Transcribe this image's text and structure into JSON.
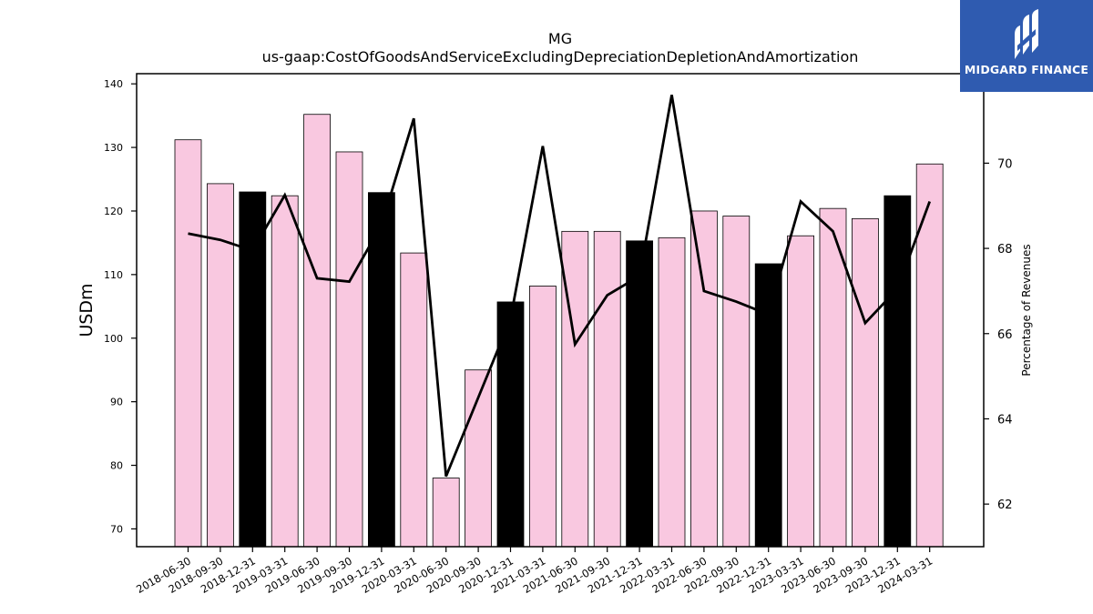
{
  "chart_data": {
    "type": "bar",
    "title": "MG",
    "subtitle": "us-gaap:CostOfGoodsAndServiceExcludingDepreciationDepletionAndAmortization",
    "ylabel": "USDm",
    "y2label": "Percentage of Revenues",
    "ylim": [
      67.2,
      141.6
    ],
    "y2lim": [
      61.0,
      72.1
    ],
    "yticks": [
      "70",
      "80",
      "90",
      "100",
      "110",
      "120",
      "130",
      "140"
    ],
    "y2ticks": [
      "62",
      "64",
      "66",
      "68",
      "70"
    ],
    "categories": [
      "2018-06-30",
      "2018-09-30",
      "2018-12-31",
      "2019-03-31",
      "2019-06-30",
      "2019-09-30",
      "2019-12-31",
      "2020-03-31",
      "2020-06-30",
      "2020-09-30",
      "2020-12-31",
      "2021-03-31",
      "2021-06-30",
      "2021-09-30",
      "2021-12-31",
      "2022-03-31",
      "2022-06-30",
      "2022-09-30",
      "2022-12-31",
      "2023-03-31",
      "2023-06-30",
      "2023-09-30",
      "2023-12-31",
      "2024-03-31"
    ],
    "series": [
      {
        "kind": "bar",
        "values": [
          131.2,
          124.3,
          123.0,
          122.4,
          135.2,
          129.3,
          122.9,
          113.4,
          78.0,
          95.0,
          105.7,
          108.2,
          116.8,
          116.8,
          115.3,
          115.8,
          120.0,
          119.2,
          111.7,
          116.1,
          120.4,
          118.8,
          122.4,
          127.4
        ],
        "colors": [
          "#f9c8e0",
          "#f9c8e0",
          "#000000",
          "#f9c8e0",
          "#f9c8e0",
          "#f9c8e0",
          "#000000",
          "#f9c8e0",
          "#f9c8e0",
          "#f9c8e0",
          "#000000",
          "#f9c8e0",
          "#f9c8e0",
          "#f9c8e0",
          "#000000",
          "#f9c8e0",
          "#f9c8e0",
          "#f9c8e0",
          "#000000",
          "#f9c8e0",
          "#f9c8e0",
          "#f9c8e0",
          "#000000",
          "#f9c8e0"
        ]
      },
      {
        "kind": "line",
        "axis": "right",
        "values": [
          68.35,
          68.2,
          67.95,
          69.25,
          67.3,
          67.22,
          68.55,
          71.05,
          62.65,
          64.5,
          66.35,
          70.4,
          65.75,
          66.9,
          67.35,
          71.6,
          67.0,
          66.75,
          66.45,
          69.1,
          68.4,
          66.25,
          67.05,
          69.1
        ],
        "color": "#000000"
      }
    ],
    "grid": false,
    "legend": "none"
  },
  "watermark": {
    "text": "MIDGARD FINANCE",
    "background": "#2f5bb0"
  }
}
